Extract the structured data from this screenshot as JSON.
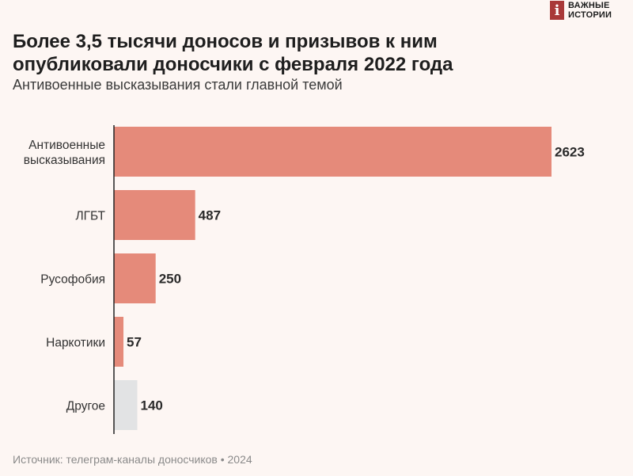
{
  "brand": {
    "logo_letter": "i",
    "line1": "ВАЖНЫЕ",
    "line2": "ИСТОРИИ",
    "color": "#a93939"
  },
  "header": {
    "title": "Более 3,5 тысячи доносов и призывов к ним опубликовали доносчики с февраля 2022 года",
    "subtitle": "Антивоенные высказывания стали главной темой"
  },
  "footer": {
    "source": "Источник: телеграм-каналы доносчиков • 2024"
  },
  "colors": {
    "bar_main": "#e58a7a",
    "bar_other": "#e2e3e4",
    "axis": "#222222",
    "value_text": "#2a2a2a",
    "label_text": "#333333"
  },
  "chart_data": {
    "type": "bar",
    "orientation": "horizontal",
    "categories": [
      [
        "Антивоенные",
        "высказывания"
      ],
      [
        "ЛГБТ"
      ],
      [
        "Русофобия"
      ],
      [
        "Наркотики"
      ],
      [
        "Другое"
      ]
    ],
    "values": [
      2623,
      487,
      250,
      57,
      140
    ],
    "value_labels": [
      "2623",
      "487",
      "250",
      "57",
      "140"
    ],
    "highlight": [
      true,
      true,
      true,
      true,
      false
    ],
    "xlim": [
      0,
      2623
    ],
    "grid": false,
    "legend": "none"
  }
}
